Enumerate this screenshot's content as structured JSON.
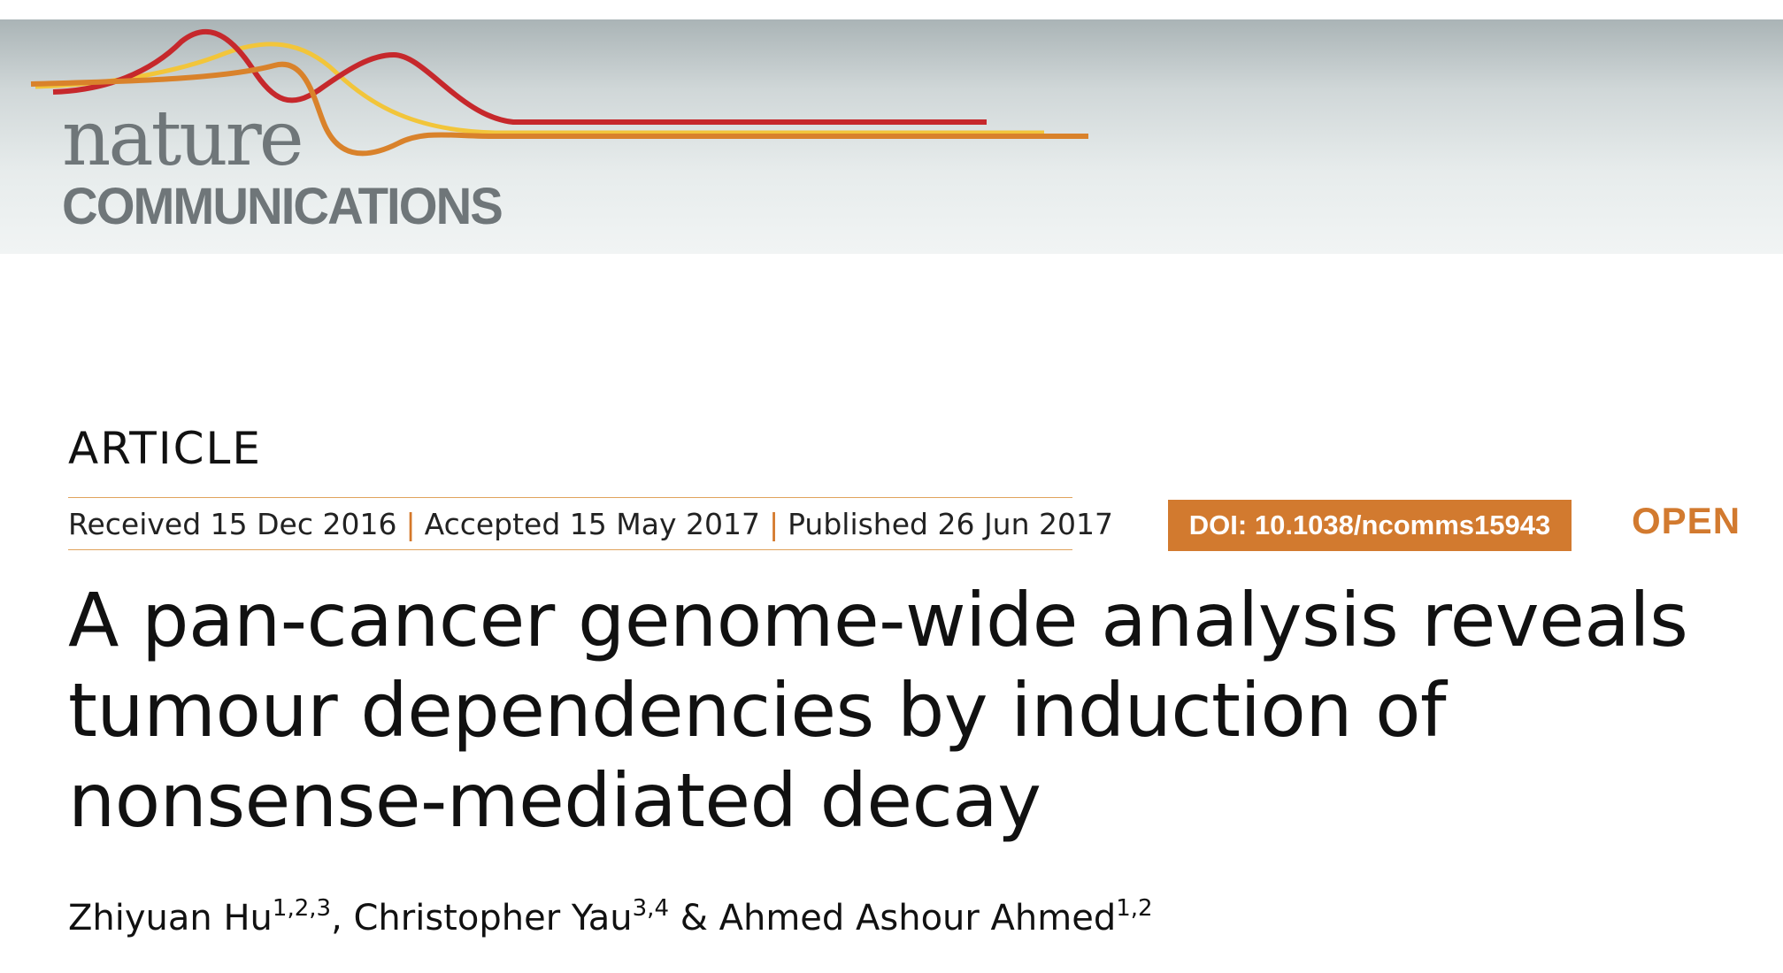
{
  "journal": {
    "name_line1": "nature",
    "name_line2": "COMMUNICATIONS",
    "colors": {
      "red": "#c6282c",
      "orange": "#d9822b",
      "yellow": "#f2c53a",
      "gray": "#6f7679"
    }
  },
  "article": {
    "type": "ARTICLE",
    "received": "Received 15 Dec 2016",
    "accepted": "Accepted 15 May 2017",
    "published": "Published 26 Jun 2017",
    "separator": "|",
    "doi": "DOI: 10.1038/ncomms15943",
    "open_label": "OPEN",
    "accent_color": "#d27a2f",
    "title_line1": "A pan-cancer genome-wide analysis reveals",
    "title_line2": "tumour dependencies by induction of",
    "title_line3": "nonsense-mediated decay",
    "authors": [
      {
        "name": "Zhiyuan Hu",
        "affiliations": "1,2,3"
      },
      {
        "name": "Christopher Yau",
        "affiliations": "3,4"
      },
      {
        "name": "Ahmed Ashour Ahmed",
        "affiliations": "1,2"
      }
    ],
    "author_separator_1": ", ",
    "author_separator_2": " & "
  }
}
